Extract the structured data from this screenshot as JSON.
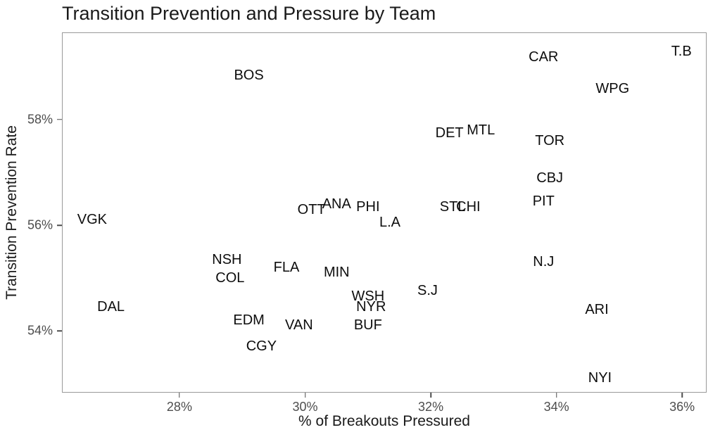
{
  "colors": {
    "background": "#ffffff",
    "panel_border": "#999999",
    "tick_color": "#4d4d4d",
    "tick_label_color": "#4d4d4d",
    "team_label_color": "#0d0d0d",
    "title_color": "#1a1a1a"
  },
  "chart_data": {
    "type": "scatter",
    "title": "Transition Prevention and Pressure by Team",
    "xlabel": "% of Breakouts Pressured",
    "ylabel": "Transition Prevention Rate",
    "legend": "none",
    "grid": "off",
    "point_style": "text-labels-only",
    "xlim": [
      26.13,
      36.39
    ],
    "ylim": [
      52.83,
      59.65
    ],
    "x_ticks": [
      {
        "value": 28,
        "label": "28%"
      },
      {
        "value": 30,
        "label": "30%"
      },
      {
        "value": 32,
        "label": "32%"
      },
      {
        "value": 34,
        "label": "34%"
      },
      {
        "value": 36,
        "label": "36%"
      }
    ],
    "y_ticks": [
      {
        "value": 54,
        "label": "54%"
      },
      {
        "value": 56,
        "label": "56%"
      },
      {
        "value": 58,
        "label": "58%"
      }
    ],
    "points": [
      {
        "team": "T.B",
        "x": 36.0,
        "y": 59.3
      },
      {
        "team": "CAR",
        "x": 33.8,
        "y": 59.2
      },
      {
        "team": "BOS",
        "x": 29.1,
        "y": 58.85
      },
      {
        "team": "WPG",
        "x": 34.9,
        "y": 58.6
      },
      {
        "team": "MTL",
        "x": 32.8,
        "y": 57.8
      },
      {
        "team": "DET",
        "x": 32.3,
        "y": 57.75
      },
      {
        "team": "TOR",
        "x": 33.9,
        "y": 57.6
      },
      {
        "team": "CBJ",
        "x": 33.9,
        "y": 56.9
      },
      {
        "team": "PIT",
        "x": 33.8,
        "y": 56.45
      },
      {
        "team": "STL",
        "x": 32.35,
        "y": 56.35
      },
      {
        "team": "CHI",
        "x": 32.6,
        "y": 56.35
      },
      {
        "team": "ANA",
        "x": 30.5,
        "y": 56.4
      },
      {
        "team": "PHI",
        "x": 31.0,
        "y": 56.35
      },
      {
        "team": "OTT",
        "x": 30.1,
        "y": 56.3
      },
      {
        "team": "VGK",
        "x": 26.6,
        "y": 56.1
      },
      {
        "team": "L.A",
        "x": 31.35,
        "y": 56.05
      },
      {
        "team": "NSH",
        "x": 28.75,
        "y": 55.35
      },
      {
        "team": "N.J",
        "x": 33.8,
        "y": 55.3
      },
      {
        "team": "FLA",
        "x": 29.7,
        "y": 55.2
      },
      {
        "team": "MIN",
        "x": 30.5,
        "y": 55.1
      },
      {
        "team": "COL",
        "x": 28.8,
        "y": 55.0
      },
      {
        "team": "S.J",
        "x": 31.95,
        "y": 54.75
      },
      {
        "team": "WSH",
        "x": 31.0,
        "y": 54.65
      },
      {
        "team": "DAL",
        "x": 26.9,
        "y": 54.45
      },
      {
        "team": "NYR",
        "x": 31.05,
        "y": 54.45
      },
      {
        "team": "ARI",
        "x": 34.65,
        "y": 54.4
      },
      {
        "team": "EDM",
        "x": 29.1,
        "y": 54.2
      },
      {
        "team": "VAN",
        "x": 29.9,
        "y": 54.1
      },
      {
        "team": "BUF",
        "x": 31.0,
        "y": 54.1
      },
      {
        "team": "CGY",
        "x": 29.3,
        "y": 53.7
      },
      {
        "team": "NYI",
        "x": 34.7,
        "y": 53.1
      }
    ]
  }
}
